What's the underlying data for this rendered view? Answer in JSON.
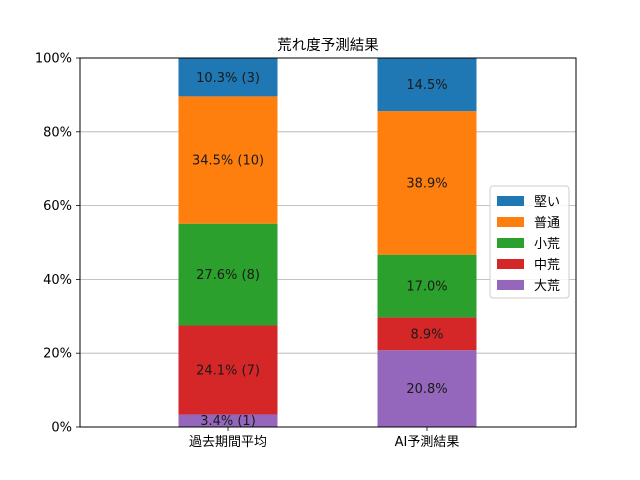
{
  "chart_data": {
    "type": "bar",
    "stacked": true,
    "title": "荒れ度予測結果",
    "xlabel": "",
    "ylabel": "",
    "categories": [
      "過去期間平均",
      "AI予測結果"
    ],
    "ylim": [
      0,
      100
    ],
    "yticks": [
      "0%",
      "20%",
      "40%",
      "60%",
      "80%",
      "100%"
    ],
    "grid": "y",
    "legend_position": "right",
    "series": [
      {
        "name": "大荒",
        "color": "#9467bd",
        "values": [
          3.4,
          20.8
        ],
        "labels": [
          "3.4% (1)",
          "20.8%"
        ]
      },
      {
        "name": "中荒",
        "color": "#d62728",
        "values": [
          24.1,
          8.9
        ],
        "labels": [
          "24.1% (7)",
          "8.9%"
        ]
      },
      {
        "name": "小荒",
        "color": "#2ca02c",
        "values": [
          27.6,
          17.0
        ],
        "labels": [
          "27.6% (8)",
          "17.0%"
        ]
      },
      {
        "name": "普通",
        "color": "#ff7f0e",
        "values": [
          34.5,
          38.9
        ],
        "labels": [
          "34.5% (10)",
          "38.9%"
        ]
      },
      {
        "name": "堅い",
        "color": "#1f77b4",
        "values": [
          10.3,
          14.5
        ],
        "labels": [
          "10.3% (3)",
          "14.5%"
        ]
      }
    ],
    "legend_order": [
      "堅い",
      "普通",
      "小荒",
      "中荒",
      "大荒"
    ]
  }
}
